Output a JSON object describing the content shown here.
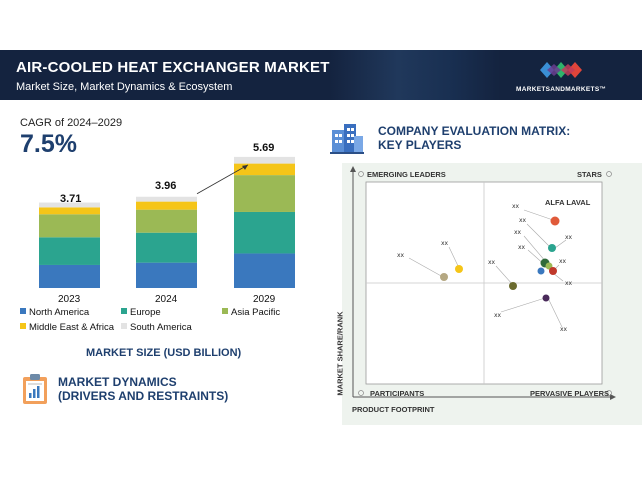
{
  "header": {
    "title": "AIR-COOLED HEAT EXCHANGER MARKET",
    "subtitle": "Market Size, Market Dynamics & Ecosystem",
    "brand": "MARKETSANDMARKETS™",
    "brand_colors": [
      "#3a8fd6",
      "#2fb36b",
      "#e0453a"
    ]
  },
  "cagr": {
    "label": "CAGR of 2024–2029",
    "value": "7.5%"
  },
  "chart_data": {
    "type": "bar",
    "stacked": true,
    "title": "MARKET SIZE (USD BILLION)",
    "categories": [
      "2023",
      "2024",
      "2029"
    ],
    "totals": [
      "3.71",
      "3.96",
      "5.69"
    ],
    "total_values": [
      3.71,
      3.96,
      5.69
    ],
    "series": [
      {
        "name": "North America",
        "color": "#3a78be",
        "values": [
          1.0,
          1.1,
          1.5
        ]
      },
      {
        "name": "Europe",
        "color": "#2ba48f",
        "values": [
          1.2,
          1.3,
          1.8
        ]
      },
      {
        "name": "Asia Pacific",
        "color": "#9bb955",
        "values": [
          1.0,
          1.0,
          1.6
        ]
      },
      {
        "name": "Middle East & Africa",
        "color": "#f5c518",
        "values": [
          0.3,
          0.35,
          0.5
        ]
      },
      {
        "name": "South America",
        "color": "#e3e3e3",
        "values": [
          0.21,
          0.21,
          0.29
        ]
      }
    ],
    "xlabel": "",
    "ylabel": "",
    "ylim": [
      0,
      6
    ]
  },
  "market_size_label": "MARKET SIZE (USD BILLION)",
  "market_dynamics": {
    "title_line1": "MARKET DYNAMICS",
    "title_line2": "(DRIVERS AND RESTRAINTS)"
  },
  "company_matrix": {
    "title_line1": "COMPANY EVALUATION MATRIX:",
    "title_line2": "KEY PLAYERS",
    "quadrants": {
      "top_left": "EMERGING LEADERS",
      "top_right": "STARS",
      "bottom_left": "PARTICIPANTS",
      "bottom_right": "PERVASIVE PLAYERS"
    },
    "y_axis": "MARKET SHARE/RANK",
    "x_axis": "PRODUCT FOOTPRINT",
    "leader_label": "ALFA LAVAL",
    "placeholder": "xx"
  }
}
